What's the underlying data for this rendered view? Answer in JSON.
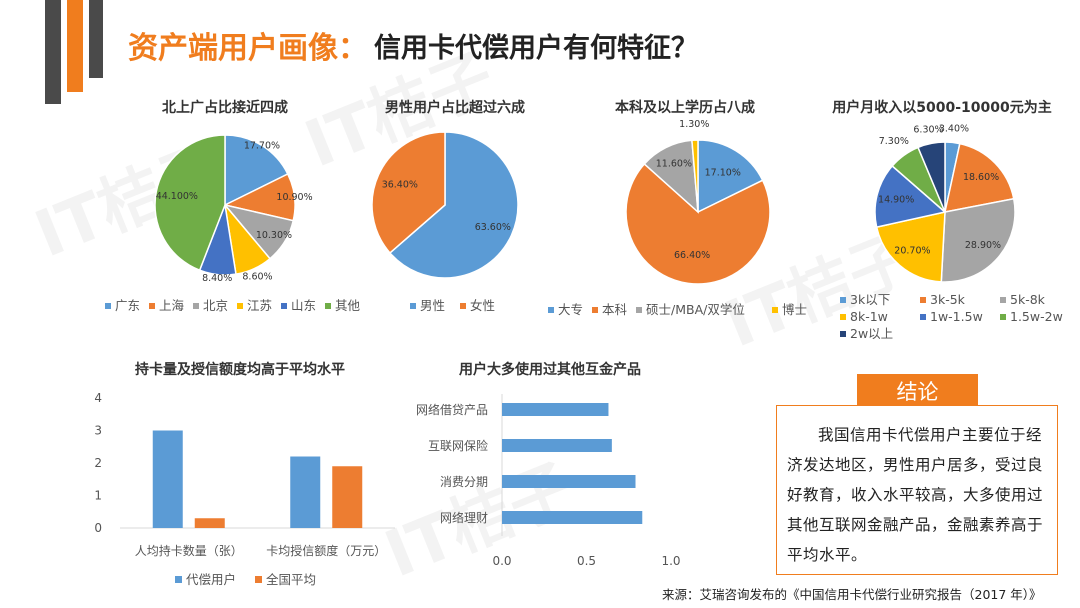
{
  "title": {
    "main": "资产端用户画像",
    "colon": "：",
    "sub": "信用卡代偿用户有何特征？"
  },
  "watermark": "IT桔子",
  "colors": {
    "blue": "#5b9bd5",
    "orange": "#ed7d31",
    "gray": "#a5a5a5",
    "yellow": "#ffc000",
    "darkblue": "#4472c4",
    "green": "#70ad47",
    "navy": "#264478",
    "accent": "#f07d1e"
  },
  "chart_data": [
    {
      "type": "pie",
      "title": "北上广占比接近四成",
      "labels": [
        "广东",
        "上海",
        "北京",
        "江苏",
        "山东",
        "其他"
      ],
      "values": [
        17.7,
        10.9,
        10.3,
        8.6,
        8.4,
        44.1
      ],
      "data_labels": [
        "17.70%",
        "10.90%",
        "10.30%",
        "8.60%",
        "8.40%",
        "44.100%"
      ],
      "colors": [
        "#5b9bd5",
        "#ed7d31",
        "#a5a5a5",
        "#ffc000",
        "#4472c4",
        "#70ad47"
      ]
    },
    {
      "type": "pie",
      "title": "男性用户占比超过六成",
      "labels": [
        "男性",
        "女性"
      ],
      "values": [
        63.6,
        36.4
      ],
      "data_labels": [
        "63.60%",
        "36.40%"
      ],
      "colors": [
        "#5b9bd5",
        "#ed7d31"
      ]
    },
    {
      "type": "pie",
      "title": "本科及以上学历占八成",
      "labels": [
        "大专",
        "本科",
        "硕士/MBA/双学位",
        "博士"
      ],
      "values": [
        17.1,
        66.4,
        11.6,
        1.3
      ],
      "data_labels": [
        "17.10%",
        "66.40%",
        "11.60%",
        "1.30%"
      ],
      "colors": [
        "#5b9bd5",
        "#ed7d31",
        "#a5a5a5",
        "#ffc000"
      ]
    },
    {
      "type": "pie",
      "title": "用户月收入以5000-10000元为主",
      "labels": [
        "3k以下",
        "3k-5k",
        "5k-8k",
        "8k-1w",
        "1w-1.5w",
        "1.5w-2w",
        "2w以上"
      ],
      "values": [
        3.4,
        18.6,
        28.9,
        20.7,
        14.9,
        7.3,
        6.3
      ],
      "data_labels": [
        "3.40%",
        "18.60%",
        "28.90%",
        "20.70%",
        "14.90%",
        "7.30%",
        "6.30%"
      ],
      "colors": [
        "#5b9bd5",
        "#ed7d31",
        "#a5a5a5",
        "#ffc000",
        "#4472c4",
        "#70ad47",
        "#264478"
      ]
    },
    {
      "type": "bar",
      "title": "持卡量及授信额度均高于平均水平",
      "categories": [
        "人均持卡数量（张）",
        "卡均授信额度（万元）"
      ],
      "series": [
        {
          "name": "代偿用户",
          "values": [
            3.0,
            2.2
          ],
          "color": "#5b9bd5"
        },
        {
          "name": "全国平均",
          "values": [
            0.3,
            1.9
          ],
          "color": "#ed7d31"
        }
      ],
      "yticks": [
        "0",
        "1",
        "2",
        "3",
        "4"
      ],
      "ylim": [
        0,
        4
      ]
    },
    {
      "type": "bar",
      "orientation": "horizontal",
      "title": "用户大多使用过其他互金产品",
      "categories": [
        "网络借贷产品",
        "互联网保险",
        "消费分期",
        "网络理财"
      ],
      "values": [
        0.63,
        0.65,
        0.79,
        0.83
      ],
      "xticks": [
        "0.0",
        "0.5",
        "1.0"
      ],
      "xlim": [
        0,
        1.0
      ],
      "color": "#5b9bd5"
    }
  ],
  "conclusion": {
    "heading": "结论",
    "text": "我国信用卡代偿用户主要位于经济发达地区，男性用户居多，受过良好教育，收入水平较高，大多使用过其他互联网金融产品，金融素养高于平均水平。"
  },
  "source": "来源：艾瑞咨询发布的《中国信用卡代偿行业研究报告（2017 年）》"
}
